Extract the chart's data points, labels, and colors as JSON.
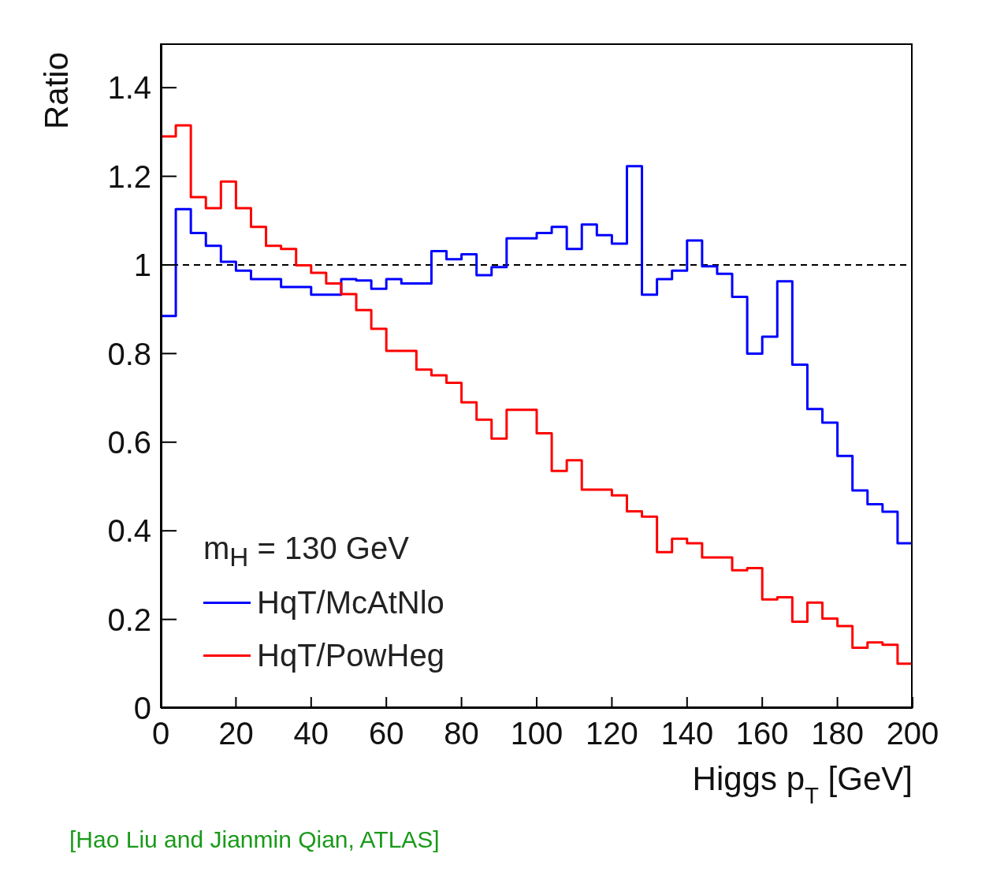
{
  "chart_data": {
    "type": "histogram",
    "xlabel": "Higgs p$_{T}$ [GeV]",
    "ylabel": "Ratio",
    "legend_title": "m$_{H}$ = 130 GeV",
    "bins": [
      0,
      4,
      8,
      12,
      16,
      20,
      24,
      28,
      32,
      36,
      40,
      44,
      48,
      52,
      56,
      60,
      64,
      68,
      72,
      76,
      80,
      84,
      88,
      92,
      96,
      100,
      104,
      108,
      112,
      116,
      120,
      124,
      128,
      132,
      136,
      140,
      144,
      148,
      152,
      156,
      160,
      164,
      168,
      172,
      176,
      180,
      184,
      188,
      192,
      196,
      200
    ],
    "series": [
      {
        "name": "HqT/McAtNlo",
        "color": "#0000ff",
        "values": [
          0.885,
          1.126,
          1.072,
          1.043,
          1.007,
          0.987,
          0.968,
          0.968,
          0.95,
          0.95,
          0.933,
          0.933,
          0.968,
          0.965,
          0.946,
          0.968,
          0.958,
          0.958,
          1.031,
          1.013,
          1.024,
          0.977,
          0.995,
          1.06,
          1.06,
          1.072,
          1.086,
          1.036,
          1.091,
          1.067,
          1.048,
          1.223,
          0.933,
          0.968,
          0.987,
          1.055,
          0.997,
          0.98,
          0.928,
          0.8,
          0.838,
          0.963,
          0.775,
          0.675,
          0.644,
          0.569,
          0.491,
          0.46,
          0.443,
          0.372
        ]
      },
      {
        "name": "HqT/PowHeg",
        "color": "#ff0000",
        "values": [
          1.29,
          1.315,
          1.153,
          1.128,
          1.188,
          1.128,
          1.086,
          1.043,
          1.036,
          0.999,
          0.982,
          0.958,
          0.934,
          0.898,
          0.856,
          0.806,
          0.806,
          0.764,
          0.751,
          0.734,
          0.69,
          0.651,
          0.608,
          0.673,
          0.673,
          0.62,
          0.535,
          0.559,
          0.493,
          0.493,
          0.48,
          0.444,
          0.432,
          0.352,
          0.382,
          0.372,
          0.34,
          0.34,
          0.311,
          0.316,
          0.245,
          0.25,
          0.195,
          0.238,
          0.202,
          0.185,
          0.136,
          0.148,
          0.143,
          0.1
        ]
      }
    ],
    "xlim": [
      0,
      200
    ],
    "xticks": [
      0,
      20,
      40,
      60,
      80,
      100,
      120,
      140,
      160,
      180,
      200
    ],
    "ylim": [
      0,
      1.5
    ],
    "yticks": [
      0,
      0.2,
      0.4,
      0.6,
      0.8,
      1,
      1.2,
      1.4
    ],
    "ref_lines": [
      {
        "axis": "y",
        "value": 1,
        "color": "#000000",
        "line_style": "dashed"
      }
    ],
    "legend": "bottom left",
    "grid": false,
    "annotations": [
      "[Hao Liu and Jianmin Qian, ATLAS]"
    ]
  }
}
